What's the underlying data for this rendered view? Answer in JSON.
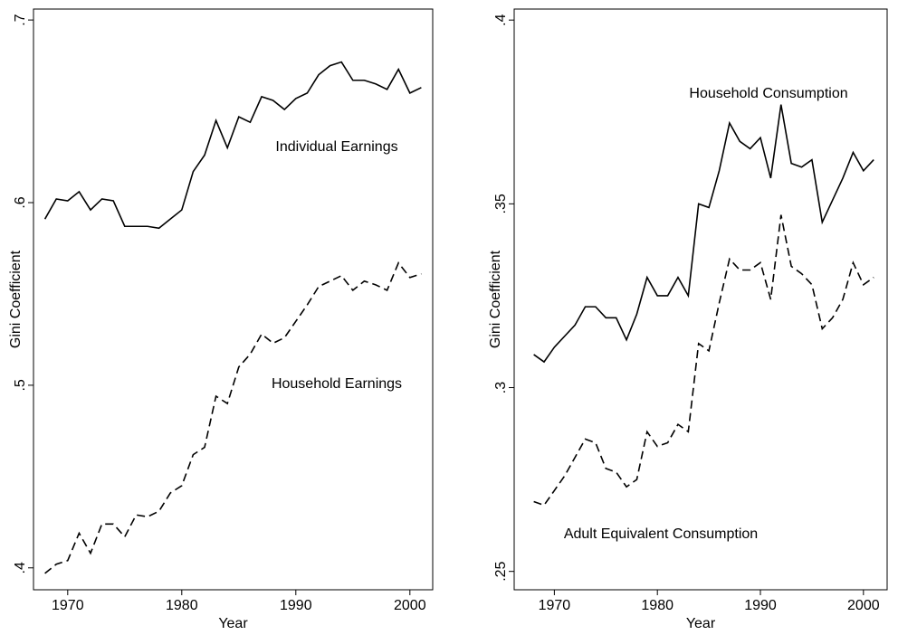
{
  "chart_data": [
    {
      "type": "line",
      "y_label": "Gini Coefficient",
      "x_label": "Year",
      "x": [
        1968,
        1969,
        1970,
        1971,
        1972,
        1973,
        1974,
        1975,
        1976,
        1977,
        1978,
        1979,
        1980,
        1981,
        1982,
        1983,
        1984,
        1985,
        1986,
        1987,
        1988,
        1989,
        1990,
        1991,
        1992,
        1993,
        1994,
        1995,
        1996,
        1997,
        1998,
        1999,
        2000,
        2001
      ],
      "xlim": [
        1967,
        2002
      ],
      "xticks": [
        1970,
        1980,
        1990,
        2000
      ],
      "ylim": [
        0.388,
        0.706
      ],
      "yticks": [
        {
          "value": 0.4,
          "label": ".4"
        },
        {
          "value": 0.5,
          "label": ".5"
        },
        {
          "value": 0.6,
          "label": ".6"
        },
        {
          "value": 0.7,
          "label": ".7"
        }
      ],
      "series": [
        {
          "name": "Individual Earnings",
          "color": "#000000",
          "dash": "solid",
          "values": [
            0.591,
            0.602,
            0.601,
            0.606,
            0.596,
            0.602,
            0.601,
            0.587,
            0.587,
            0.587,
            0.586,
            0.591,
            0.596,
            0.617,
            0.626,
            0.645,
            0.63,
            0.647,
            0.644,
            0.658,
            0.656,
            0.651,
            0.657,
            0.66,
            0.67,
            0.675,
            0.677,
            0.667,
            0.667,
            0.665,
            0.662,
            0.673,
            0.66,
            0.663
          ]
        },
        {
          "name": "Household Earnings",
          "color": "#000000",
          "dash": "dashed",
          "values": [
            0.397,
            0.402,
            0.404,
            0.419,
            0.408,
            0.424,
            0.424,
            0.417,
            0.429,
            0.428,
            0.431,
            0.441,
            0.445,
            0.462,
            0.466,
            0.494,
            0.49,
            0.51,
            0.517,
            0.528,
            0.523,
            0.526,
            0.535,
            0.544,
            0.554,
            0.557,
            0.56,
            0.552,
            0.557,
            0.555,
            0.552,
            0.567,
            0.559,
            0.561
          ]
        }
      ]
    },
    {
      "type": "line",
      "y_label": "Gini Coefficient",
      "x_label": "Year",
      "x": [
        1968,
        1969,
        1970,
        1971,
        1972,
        1973,
        1974,
        1975,
        1976,
        1977,
        1978,
        1979,
        1980,
        1981,
        1982,
        1983,
        1984,
        1985,
        1986,
        1987,
        1988,
        1989,
        1990,
        1991,
        1992,
        1993,
        1994,
        1995,
        1996,
        1997,
        1998,
        1999,
        2000,
        2001
      ],
      "xlim": [
        1966.1,
        2002.3
      ],
      "xticks": [
        1970,
        1980,
        1990,
        2000
      ],
      "ylim": [
        0.245,
        0.403
      ],
      "yticks": [
        {
          "value": 0.25,
          "label": ".25"
        },
        {
          "value": 0.3,
          "label": ".3"
        },
        {
          "value": 0.35,
          "label": ".35"
        },
        {
          "value": 0.4,
          "label": ".4"
        }
      ],
      "series": [
        {
          "name": "Household Consumption",
          "color": "#000000",
          "dash": "solid",
          "values": [
            0.309,
            0.307,
            0.311,
            0.314,
            0.317,
            0.322,
            0.322,
            0.319,
            0.319,
            0.313,
            0.32,
            0.33,
            0.325,
            0.325,
            0.33,
            0.325,
            0.35,
            0.349,
            0.359,
            0.372,
            0.367,
            0.365,
            0.368,
            0.357,
            0.377,
            0.361,
            0.36,
            0.362,
            0.345,
            0.351,
            0.357,
            0.364,
            0.359,
            0.362
          ]
        },
        {
          "name": "Adult Equivalent Consumption",
          "color": "#000000",
          "dash": "dashed",
          "values": [
            0.269,
            0.268,
            0.272,
            0.276,
            0.281,
            0.286,
            0.285,
            0.278,
            0.277,
            0.273,
            0.275,
            0.288,
            0.284,
            0.285,
            0.29,
            0.288,
            0.312,
            0.31,
            0.323,
            0.335,
            0.332,
            0.332,
            0.334,
            0.324,
            0.347,
            0.333,
            0.331,
            0.328,
            0.316,
            0.319,
            0.324,
            0.334,
            0.328,
            0.33
          ]
        }
      ]
    }
  ]
}
